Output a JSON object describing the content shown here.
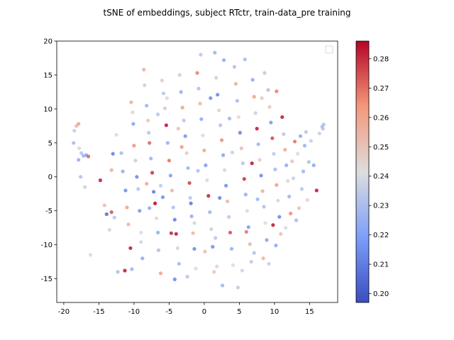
{
  "chart_data": {
    "type": "scatter",
    "title": "tSNE of embeddings, subject RTctr, train-data_pre training",
    "xlabel": "",
    "ylabel": "",
    "xlim": [
      -21,
      19
    ],
    "ylim": [
      -18.5,
      20
    ],
    "xticks": [
      -20,
      -15,
      -10,
      -5,
      0,
      5,
      10,
      15
    ],
    "yticks": [
      -15,
      -10,
      -5,
      0,
      5,
      10,
      15,
      20
    ],
    "grid": false,
    "legend": "top-right (empty)",
    "colormap": "coolwarm",
    "colorbar": {
      "range": [
        0.197,
        0.286
      ],
      "ticks": [
        0.2,
        0.21,
        0.22,
        0.23,
        0.24,
        0.25,
        0.26,
        0.27,
        0.28
      ],
      "tick_labels": [
        "0.20",
        "0.21",
        "0.22",
        "0.23",
        "0.24",
        "0.25",
        "0.26",
        "0.27",
        "0.28"
      ]
    },
    "points": [
      [
        -18.5,
        6.8,
        0.235
      ],
      [
        -18.2,
        7.5,
        0.255
      ],
      [
        -17.9,
        7.8,
        0.262
      ],
      [
        -18.6,
        5.0,
        0.228
      ],
      [
        -17.8,
        4.2,
        0.245
      ],
      [
        -17.5,
        3.5,
        0.232
      ],
      [
        -17.2,
        3.1,
        0.226
      ],
      [
        -16.8,
        3.2,
        0.22
      ],
      [
        -16.5,
        3.0,
        0.272
      ],
      [
        -17.9,
        2.5,
        0.224
      ],
      [
        -17.6,
        0.0,
        0.23
      ],
      [
        -17.0,
        -1.5,
        0.236
      ],
      [
        -14.8,
        -0.5,
        0.283
      ],
      [
        -14.2,
        -4.2,
        0.252
      ],
      [
        -13.9,
        -5.5,
        0.205
      ],
      [
        -13.5,
        -7.8,
        0.238
      ],
      [
        -13.2,
        -5.2,
        0.275
      ],
      [
        -12.8,
        -6.0,
        0.232
      ],
      [
        -13.0,
        3.4,
        0.21
      ],
      [
        -13.2,
        1.0,
        0.258
      ],
      [
        -12.5,
        6.2,
        0.244
      ],
      [
        -11.8,
        3.5,
        0.228
      ],
      [
        -11.6,
        0.8,
        0.224
      ],
      [
        -11.2,
        -2.0,
        0.214
      ],
      [
        -11.0,
        -4.5,
        0.262
      ],
      [
        -10.8,
        -7.0,
        0.256
      ],
      [
        -10.5,
        -10.5,
        0.284
      ],
      [
        -10.4,
        11.0,
        0.258
      ],
      [
        -10.2,
        9.5,
        0.245
      ],
      [
        -10.1,
        7.8,
        0.22
      ],
      [
        -10.0,
        4.6,
        0.265
      ],
      [
        -9.8,
        2.4,
        0.236
      ],
      [
        -9.6,
        0.0,
        0.212
      ],
      [
        -9.4,
        -1.8,
        0.232
      ],
      [
        -9.2,
        -5.0,
        0.216
      ],
      [
        -9.0,
        -8.2,
        0.24
      ],
      [
        -8.8,
        -12.0,
        0.222
      ],
      [
        -8.6,
        15.8,
        0.258
      ],
      [
        -8.5,
        13.5,
        0.236
      ],
      [
        -8.2,
        10.5,
        0.226
      ],
      [
        -8.0,
        8.3,
        0.25
      ],
      [
        -7.9,
        6.5,
        0.232
      ],
      [
        -7.8,
        5.0,
        0.272
      ],
      [
        -7.6,
        2.7,
        0.225
      ],
      [
        -7.4,
        0.6,
        0.28
      ],
      [
        -7.2,
        -2.2,
        0.208
      ],
      [
        -7.0,
        -3.9,
        0.286
      ],
      [
        -6.8,
        -6.1,
        0.244
      ],
      [
        -6.6,
        -8.2,
        0.222
      ],
      [
        -6.5,
        -10.8,
        0.23
      ],
      [
        -6.2,
        -14.2,
        0.262
      ],
      [
        -6.0,
        14.2,
        0.248
      ],
      [
        -5.8,
        12.3,
        0.232
      ],
      [
        -5.6,
        10.1,
        0.25
      ],
      [
        -5.4,
        7.6,
        0.285
      ],
      [
        -5.2,
        5.0,
        0.224
      ],
      [
        -5.0,
        2.4,
        0.27
      ],
      [
        -4.8,
        0.2,
        0.218
      ],
      [
        -4.6,
        -2.0,
        0.255
      ],
      [
        -4.4,
        -4.5,
        0.23
      ],
      [
        -4.2,
        -6.3,
        0.21
      ],
      [
        -4.0,
        -8.4,
        0.284
      ],
      [
        -3.8,
        -10.5,
        0.238
      ],
      [
        -3.6,
        -12.8,
        0.228
      ],
      [
        -3.5,
        15.0,
        0.236
      ],
      [
        -3.3,
        12.5,
        0.224
      ],
      [
        -3.1,
        10.2,
        0.262
      ],
      [
        -2.9,
        8.3,
        0.232
      ],
      [
        -2.7,
        6.0,
        0.215
      ],
      [
        -2.5,
        3.5,
        0.248
      ],
      [
        -2.3,
        1.3,
        0.226
      ],
      [
        -2.1,
        -0.9,
        0.278
      ],
      [
        -2.0,
        -3.1,
        0.233
      ],
      [
        -1.8,
        -5.8,
        0.222
      ],
      [
        -1.6,
        -8.3,
        0.256
      ],
      [
        -1.4,
        -10.6,
        0.212
      ],
      [
        -1.2,
        -13.5,
        0.24
      ],
      [
        -1.0,
        15.3,
        0.268
      ],
      [
        -0.8,
        13.0,
        0.23
      ],
      [
        -0.6,
        10.8,
        0.254
      ],
      [
        -0.4,
        8.5,
        0.222
      ],
      [
        -0.2,
        6.1,
        0.24
      ],
      [
        0.0,
        3.9,
        0.26
      ],
      [
        0.2,
        1.7,
        0.218
      ],
      [
        0.4,
        -0.5,
        0.244
      ],
      [
        0.6,
        -2.8,
        0.282
      ],
      [
        0.8,
        -5.2,
        0.226
      ],
      [
        1.0,
        -7.7,
        0.236
      ],
      [
        1.2,
        -10.3,
        0.214
      ],
      [
        1.4,
        -14.0,
        0.25
      ],
      [
        1.5,
        18.3,
        0.225
      ],
      [
        1.7,
        14.6,
        0.236
      ],
      [
        1.9,
        12.1,
        0.212
      ],
      [
        2.1,
        9.8,
        0.246
      ],
      [
        2.3,
        7.6,
        0.23
      ],
      [
        2.5,
        5.4,
        0.266
      ],
      [
        2.7,
        3.2,
        0.22
      ],
      [
        2.9,
        1.0,
        0.238
      ],
      [
        3.1,
        -1.3,
        0.214
      ],
      [
        3.3,
        -3.6,
        0.256
      ],
      [
        3.5,
        -5.9,
        0.232
      ],
      [
        3.7,
        -8.2,
        0.276
      ],
      [
        3.9,
        -10.6,
        0.224
      ],
      [
        4.1,
        -13.0,
        0.242
      ],
      [
        4.3,
        16.2,
        0.23
      ],
      [
        4.5,
        13.7,
        0.258
      ],
      [
        4.7,
        11.2,
        0.228
      ],
      [
        4.9,
        8.8,
        0.244
      ],
      [
        5.1,
        6.5,
        0.21
      ],
      [
        5.3,
        4.2,
        0.252
      ],
      [
        5.5,
        2.0,
        0.232
      ],
      [
        5.7,
        -0.3,
        0.28
      ],
      [
        5.9,
        -2.6,
        0.224
      ],
      [
        6.1,
        -5.0,
        0.24
      ],
      [
        6.3,
        -7.4,
        0.218
      ],
      [
        6.5,
        -9.9,
        0.254
      ],
      [
        6.7,
        -12.5,
        0.234
      ],
      [
        6.9,
        14.3,
        0.222
      ],
      [
        7.1,
        11.8,
        0.262
      ],
      [
        7.3,
        9.4,
        0.236
      ],
      [
        7.5,
        7.1,
        0.284
      ],
      [
        7.7,
        4.8,
        0.226
      ],
      [
        7.9,
        2.5,
        0.248
      ],
      [
        8.1,
        0.2,
        0.212
      ],
      [
        8.3,
        -2.1,
        0.258
      ],
      [
        8.5,
        -4.4,
        0.23
      ],
      [
        8.7,
        -6.8,
        0.242
      ],
      [
        8.9,
        -9.3,
        0.22
      ],
      [
        9.1,
        12.8,
        0.23
      ],
      [
        9.3,
        10.3,
        0.25
      ],
      [
        9.5,
        8.0,
        0.216
      ],
      [
        9.7,
        5.7,
        0.276
      ],
      [
        9.9,
        3.4,
        0.234
      ],
      [
        10.1,
        1.1,
        0.228
      ],
      [
        10.3,
        -1.2,
        0.264
      ],
      [
        10.5,
        -3.5,
        0.238
      ],
      [
        10.7,
        -5.9,
        0.212
      ],
      [
        10.9,
        -8.4,
        0.252
      ],
      [
        11.1,
        8.8,
        0.284
      ],
      [
        11.3,
        6.3,
        0.232
      ],
      [
        11.5,
        4.0,
        0.258
      ],
      [
        11.7,
        1.7,
        0.222
      ],
      [
        11.9,
        -0.6,
        0.244
      ],
      [
        12.1,
        -2.9,
        0.226
      ],
      [
        12.3,
        -5.4,
        0.266
      ],
      [
        12.5,
        2.3,
        0.25
      ],
      [
        12.7,
        -0.2,
        0.236
      ],
      [
        12.9,
        5.2,
        0.27
      ],
      [
        13.1,
        -6.4,
        0.228
      ],
      [
        13.3,
        3.4,
        0.24
      ],
      [
        13.5,
        -4.6,
        0.252
      ],
      [
        13.7,
        6.0,
        0.222
      ],
      [
        13.9,
        -1.8,
        0.232
      ],
      [
        14.1,
        0.8,
        0.226
      ],
      [
        14.3,
        4.6,
        0.225
      ],
      [
        14.5,
        6.6,
        0.232
      ],
      [
        14.7,
        -3.4,
        0.246
      ],
      [
        14.9,
        2.2,
        0.23
      ],
      [
        15.2,
        5.3,
        0.236
      ],
      [
        15.6,
        1.7,
        0.221
      ],
      [
        16.0,
        -2.0,
        0.284
      ],
      [
        16.4,
        6.4,
        0.236
      ],
      [
        16.8,
        7.4,
        0.228
      ],
      [
        17.0,
        7.7,
        0.23
      ],
      [
        16.9,
        7.1,
        0.232
      ],
      [
        -16.2,
        -11.5,
        0.24
      ],
      [
        -12.3,
        -14.0,
        0.23
      ],
      [
        -11.3,
        -13.8,
        0.284
      ],
      [
        -10.3,
        -13.6,
        0.226
      ],
      [
        -9.0,
        -9.6,
        0.238
      ],
      [
        -8.2,
        -1.0,
        0.26
      ],
      [
        -5.9,
        -3.0,
        0.214
      ],
      [
        -4.7,
        -8.3,
        0.282
      ],
      [
        -4.2,
        -15.1,
        0.212
      ],
      [
        -2.4,
        -14.7,
        0.232
      ],
      [
        -1.9,
        -3.9,
        0.208
      ],
      [
        0.1,
        -11.0,
        0.252
      ],
      [
        1.8,
        -13.2,
        0.246
      ],
      [
        2.6,
        -16.0,
        0.226
      ],
      [
        4.8,
        -16.3,
        0.234
      ],
      [
        5.4,
        -13.8,
        0.238
      ],
      [
        7.1,
        -11.2,
        0.23
      ],
      [
        8.4,
        -12.0,
        0.256
      ],
      [
        9.2,
        -12.8,
        0.236
      ],
      [
        10.2,
        -10.1,
        0.222
      ],
      [
        11.6,
        -7.5,
        0.24
      ],
      [
        -0.5,
        18.0,
        0.232
      ],
      [
        2.8,
        17.2,
        0.222
      ],
      [
        5.8,
        17.3,
        0.228
      ],
      [
        8.6,
        15.3,
        0.234
      ],
      [
        10.3,
        12.6,
        0.268
      ],
      [
        -6.6,
        9.2,
        0.232
      ],
      [
        -3.2,
        4.4,
        0.264
      ],
      [
        0.9,
        11.6,
        0.214
      ],
      [
        3.6,
        8.6,
        0.226
      ],
      [
        6.8,
        2.0,
        0.284
      ],
      [
        8.2,
        11.6,
        0.248
      ],
      [
        -1.4,
        -6.8,
        0.238
      ],
      [
        2.2,
        -3.1,
        0.21
      ],
      [
        -6.2,
        -1.3,
        0.234
      ],
      [
        -7.8,
        -4.6,
        0.222
      ],
      [
        -3.7,
        7.1,
        0.252
      ],
      [
        4.0,
        3.6,
        0.236
      ],
      [
        6.0,
        -8.1,
        0.27
      ],
      [
        -0.9,
        0.9,
        0.23
      ],
      [
        1.6,
        -9.0,
        0.232
      ],
      [
        -5.3,
        11.6,
        0.244
      ],
      [
        7.6,
        -3.3,
        0.226
      ],
      [
        9.8,
        -7.1,
        0.284
      ]
    ]
  }
}
